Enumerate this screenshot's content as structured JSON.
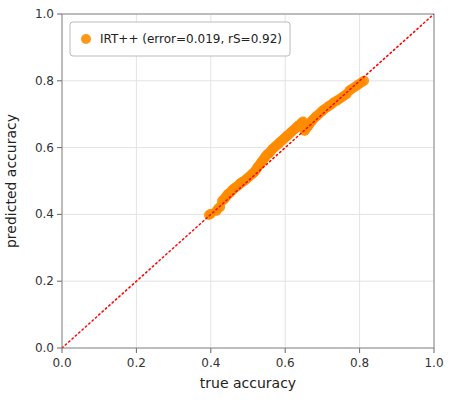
{
  "chart_data": {
    "type": "scatter",
    "xlabel": "true accuracy",
    "ylabel": "predicted accuracy",
    "xlim": [
      0.0,
      1.0
    ],
    "ylim": [
      0.0,
      1.0
    ],
    "xticks": [
      {
        "value": 0.0,
        "label": "0.0"
      },
      0.2,
      0.4,
      0.6,
      0.8,
      {
        "value": 1.0,
        "label": "1.0"
      }
    ],
    "yticks": [
      {
        "value": 0.0,
        "label": "0.0"
      },
      0.2,
      0.4,
      0.6,
      0.8,
      {
        "value": 1.0,
        "label": "1.0"
      }
    ],
    "grid": true,
    "legend": "upper left",
    "series": [
      {
        "name": "IRT++ (error=0.019, rS=0.92)",
        "type": "scatter",
        "color": "#FF8C00",
        "x": [
          0.395,
          0.4,
          0.415,
          0.42,
          0.425,
          0.43,
          0.435,
          0.438,
          0.44,
          0.443,
          0.445,
          0.448,
          0.452,
          0.455,
          0.458,
          0.46,
          0.463,
          0.468,
          0.472,
          0.475,
          0.478,
          0.482,
          0.485,
          0.49,
          0.495,
          0.498,
          0.502,
          0.508,
          0.512,
          0.515,
          0.518,
          0.522,
          0.525,
          0.528,
          0.532,
          0.535,
          0.538,
          0.542,
          0.545,
          0.548,
          0.552,
          0.555,
          0.558,
          0.562,
          0.565,
          0.568,
          0.572,
          0.575,
          0.578,
          0.582,
          0.585,
          0.588,
          0.592,
          0.595,
          0.598,
          0.602,
          0.605,
          0.608,
          0.612,
          0.615,
          0.618,
          0.622,
          0.625,
          0.628,
          0.632,
          0.635,
          0.638,
          0.642,
          0.645,
          0.648,
          0.652,
          0.655,
          0.658,
          0.662,
          0.665,
          0.668,
          0.672,
          0.675,
          0.68,
          0.685,
          0.69,
          0.695,
          0.7,
          0.705,
          0.712,
          0.718,
          0.725,
          0.73,
          0.738,
          0.745,
          0.752,
          0.758,
          0.765,
          0.772,
          0.778,
          0.785,
          0.792,
          0.798,
          0.805,
          0.812
        ],
        "values": [
          0.398,
          0.402,
          0.41,
          0.418,
          0.422,
          0.44,
          0.445,
          0.448,
          0.452,
          0.455,
          0.46,
          0.462,
          0.465,
          0.47,
          0.472,
          0.475,
          0.478,
          0.482,
          0.485,
          0.488,
          0.492,
          0.495,
          0.498,
          0.5,
          0.505,
          0.508,
          0.512,
          0.518,
          0.522,
          0.525,
          0.528,
          0.535,
          0.54,
          0.545,
          0.55,
          0.555,
          0.56,
          0.565,
          0.57,
          0.575,
          0.58,
          0.582,
          0.585,
          0.59,
          0.595,
          0.598,
          0.602,
          0.605,
          0.608,
          0.612,
          0.615,
          0.618,
          0.622,
          0.625,
          0.628,
          0.632,
          0.635,
          0.638,
          0.642,
          0.645,
          0.648,
          0.652,
          0.655,
          0.658,
          0.662,
          0.665,
          0.668,
          0.672,
          0.675,
          0.678,
          0.65,
          0.655,
          0.66,
          0.665,
          0.67,
          0.675,
          0.68,
          0.685,
          0.69,
          0.695,
          0.7,
          0.705,
          0.71,
          0.715,
          0.72,
          0.725,
          0.73,
          0.735,
          0.74,
          0.745,
          0.75,
          0.755,
          0.76,
          0.77,
          0.775,
          0.78,
          0.785,
          0.79,
          0.795,
          0.8
        ]
      },
      {
        "type": "line",
        "color": "red",
        "line_style": "dotted",
        "x": [
          0,
          1
        ],
        "values": [
          0,
          1
        ]
      }
    ]
  }
}
